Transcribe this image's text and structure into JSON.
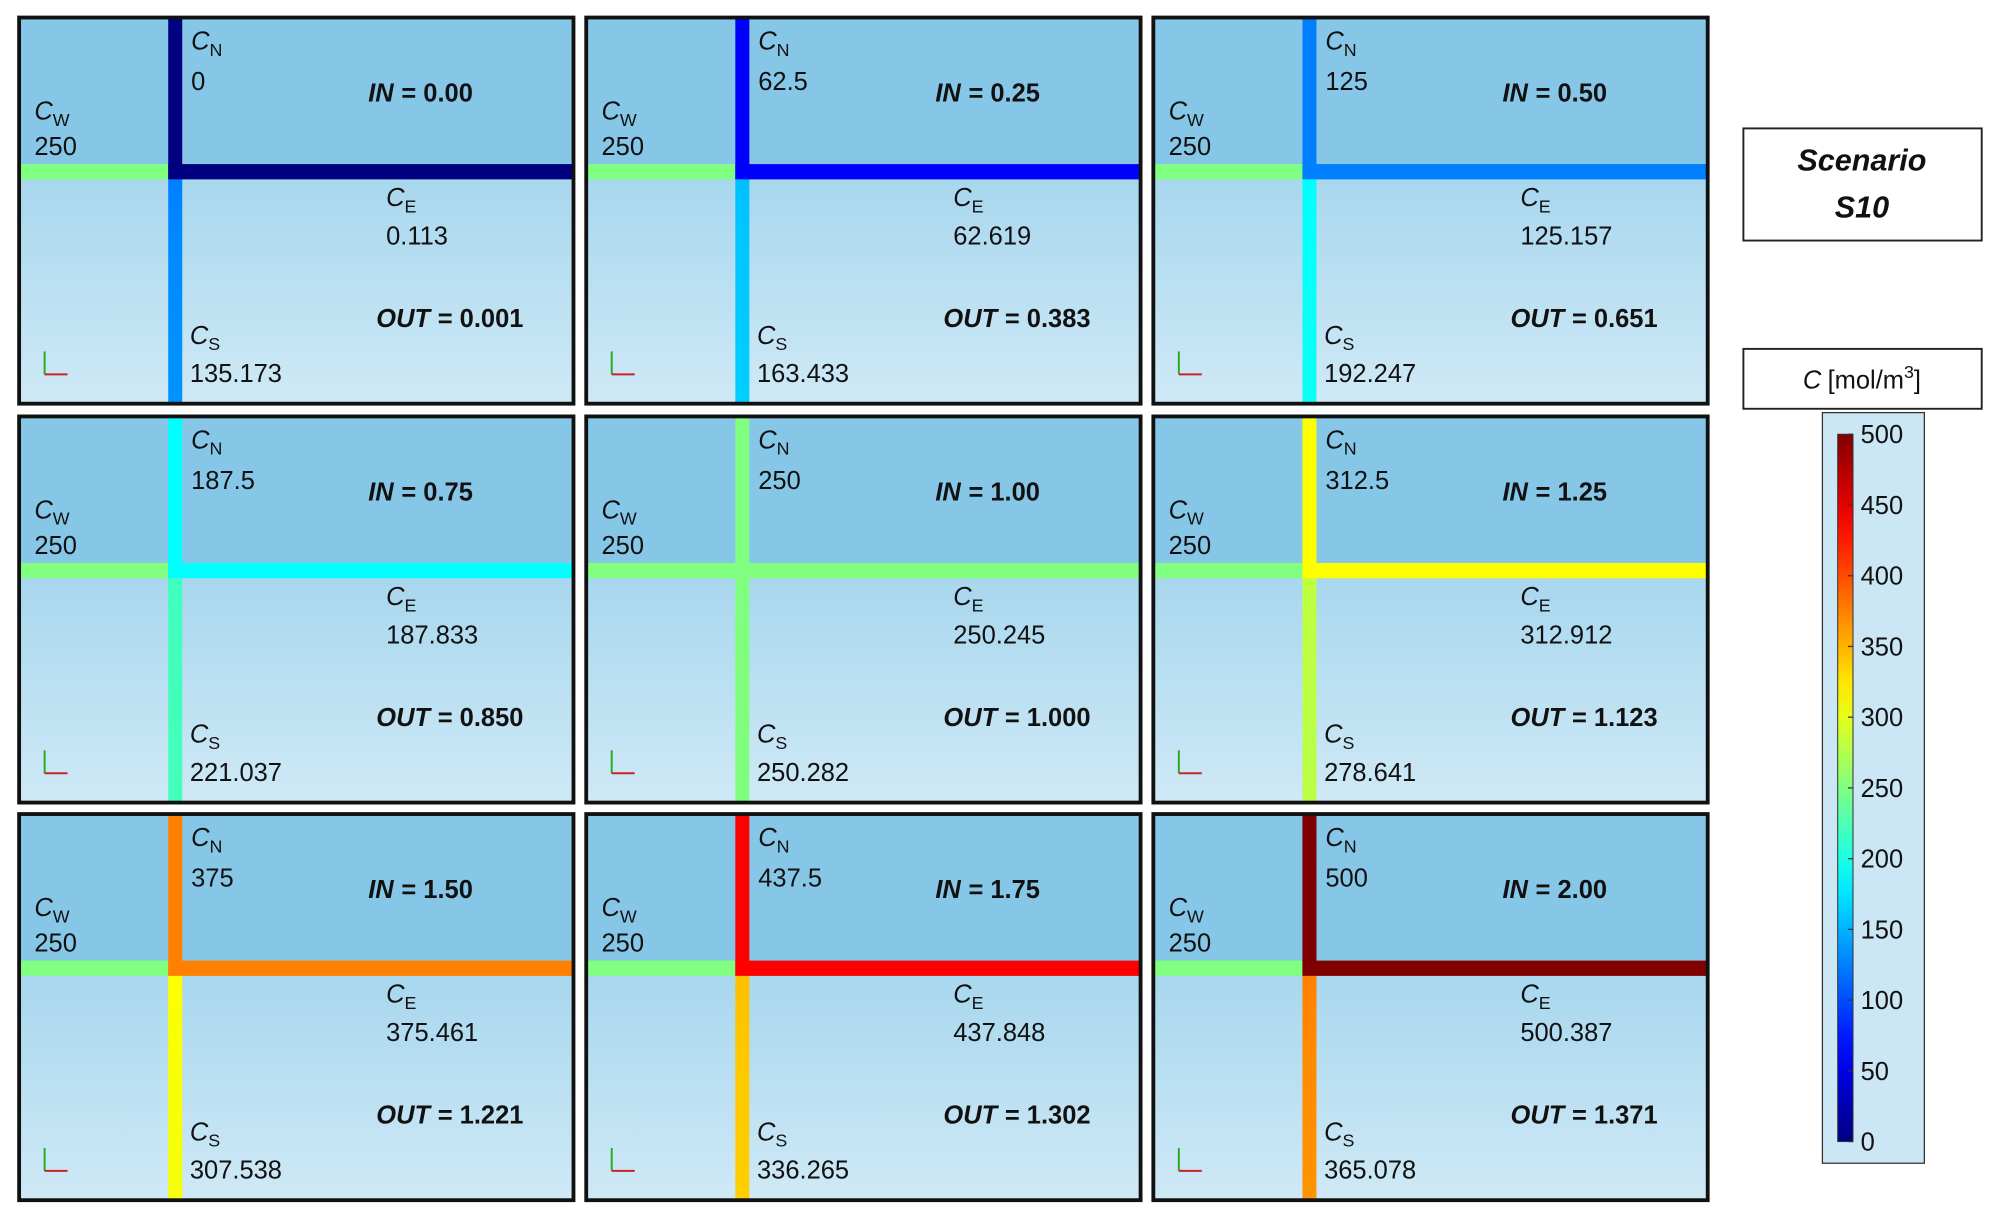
{
  "scenario": {
    "line1": "Scenario",
    "line2": "S10"
  },
  "symbols": {
    "c": "C",
    "n": "N",
    "w": "W",
    "e": "E",
    "s": "S",
    "in": "IN",
    "out": "OUT"
  },
  "panels": [
    {
      "cn": "0",
      "cw": "250",
      "ce": "0.113",
      "cs": "135.173",
      "in": "= 0.00",
      "out": "= 0.001"
    },
    {
      "cn": "62.5",
      "cw": "250",
      "ce": "62.619",
      "cs": "163.433",
      "in": "= 0.25",
      "out": "= 0.383"
    },
    {
      "cn": "125",
      "cw": "250",
      "ce": "125.157",
      "cs": "192.247",
      "in": "= 0.50",
      "out": "= 0.651"
    },
    {
      "cn": "187.5",
      "cw": "250",
      "ce": "187.833",
      "cs": "221.037",
      "in": "= 0.75",
      "out": "= 0.850"
    },
    {
      "cn": "250",
      "cw": "250",
      "ce": "250.245",
      "cs": "250.282",
      "in": "= 1.00",
      "out": "= 1.000"
    },
    {
      "cn": "312.5",
      "cw": "250",
      "ce": "312.912",
      "cs": "278.641",
      "in": "= 1.25",
      "out": "= 1.123"
    },
    {
      "cn": "375",
      "cw": "250",
      "ce": "375.461",
      "cs": "307.538",
      "in": "= 1.50",
      "out": "= 1.221"
    },
    {
      "cn": "437.5",
      "cw": "250",
      "ce": "437.848",
      "cs": "336.265",
      "in": "= 1.75",
      "out": "= 1.302"
    },
    {
      "cn": "500",
      "cw": "250",
      "ce": "500.387",
      "cs": "365.078",
      "in": "= 2.00",
      "out": "= 1.371"
    }
  ],
  "colorbar": {
    "symbol": "C",
    "unit": "[mol/m",
    "exp": "3",
    "close": "]",
    "ticks": [
      0,
      50,
      100,
      150,
      200,
      250,
      300,
      350,
      400,
      450,
      500
    ]
  }
}
